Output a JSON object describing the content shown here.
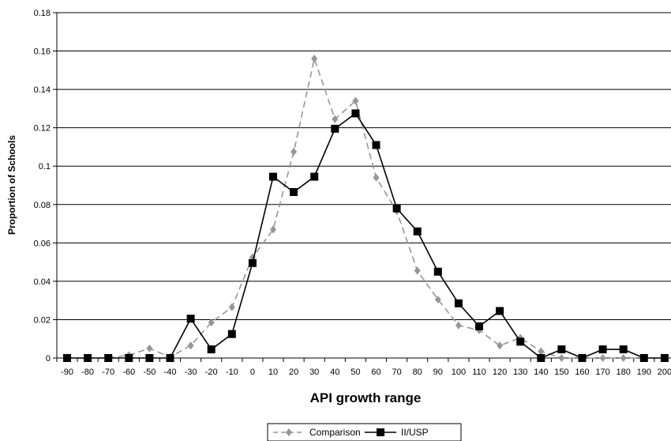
{
  "chart_data": {
    "type": "line",
    "title": "",
    "xlabel": "API growth range",
    "ylabel": "Proportion of Schools",
    "categories": [
      "-90",
      "-80",
      "-70",
      "-60",
      "-50",
      "-40",
      "-30",
      "-20",
      "-10",
      "0",
      "10",
      "20",
      "30",
      "40",
      "50",
      "60",
      "70",
      "80",
      "90",
      "100",
      "110",
      "120",
      "130",
      "140",
      "150",
      "160",
      "170",
      "180",
      "190",
      "200"
    ],
    "ylim": [
      0,
      0.18
    ],
    "yticks": [
      "0",
      "0.02",
      "0.04",
      "0.06",
      "0.08",
      "0.1",
      "0.12",
      "0.14",
      "0.16",
      "0.18"
    ],
    "grid": "horizontal",
    "legend_position": "bottom",
    "series": [
      {
        "name": "Comparison",
        "color": "#969696",
        "dash": "dashed",
        "marker": "diamond",
        "values": [
          0,
          0,
          0,
          0.0015,
          0.005,
          0.0005,
          0.0065,
          0.0185,
          0.0265,
          0.0525,
          0.067,
          0.1075,
          0.156,
          0.1245,
          0.134,
          0.094,
          0.0765,
          0.0455,
          0.0305,
          0.017,
          0.0145,
          0.0065,
          0.0105,
          0.0035,
          0,
          0,
          0,
          0,
          0,
          0
        ]
      },
      {
        "name": "II/USP",
        "color": "#000000",
        "dash": "solid",
        "marker": "square",
        "values": [
          0,
          0,
          0,
          0,
          0,
          0,
          0.0205,
          0.0045,
          0.0125,
          0.0495,
          0.0945,
          0.0865,
          0.0945,
          0.1195,
          0.1275,
          0.111,
          0.078,
          0.066,
          0.045,
          0.0285,
          0.0165,
          0.0245,
          0.0085,
          0,
          0.0045,
          0,
          0.0045,
          0.0045,
          0,
          0
        ]
      }
    ]
  }
}
